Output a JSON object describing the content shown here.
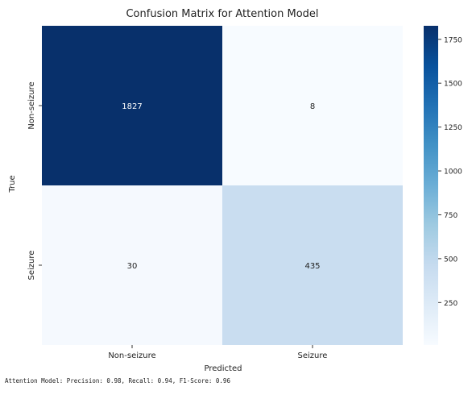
{
  "chart_data": {
    "type": "heatmap",
    "title": "Confusion Matrix for Attention Model",
    "xlabel": "Predicted",
    "ylabel": "True",
    "x_categories": [
      "Non-seizure",
      "Seizure"
    ],
    "y_categories": [
      "Non-seizure",
      "Seizure"
    ],
    "values": [
      [
        1827,
        8
      ],
      [
        30,
        435
      ]
    ],
    "colormap": "Blues",
    "colorbar": {
      "range": [
        8,
        1827
      ],
      "ticks": [
        250,
        500,
        750,
        1000,
        1250,
        1500,
        1750
      ]
    }
  },
  "summary": "Attention Model: Precision: 0.98, Recall: 0.94, F1-Score: 0.96"
}
